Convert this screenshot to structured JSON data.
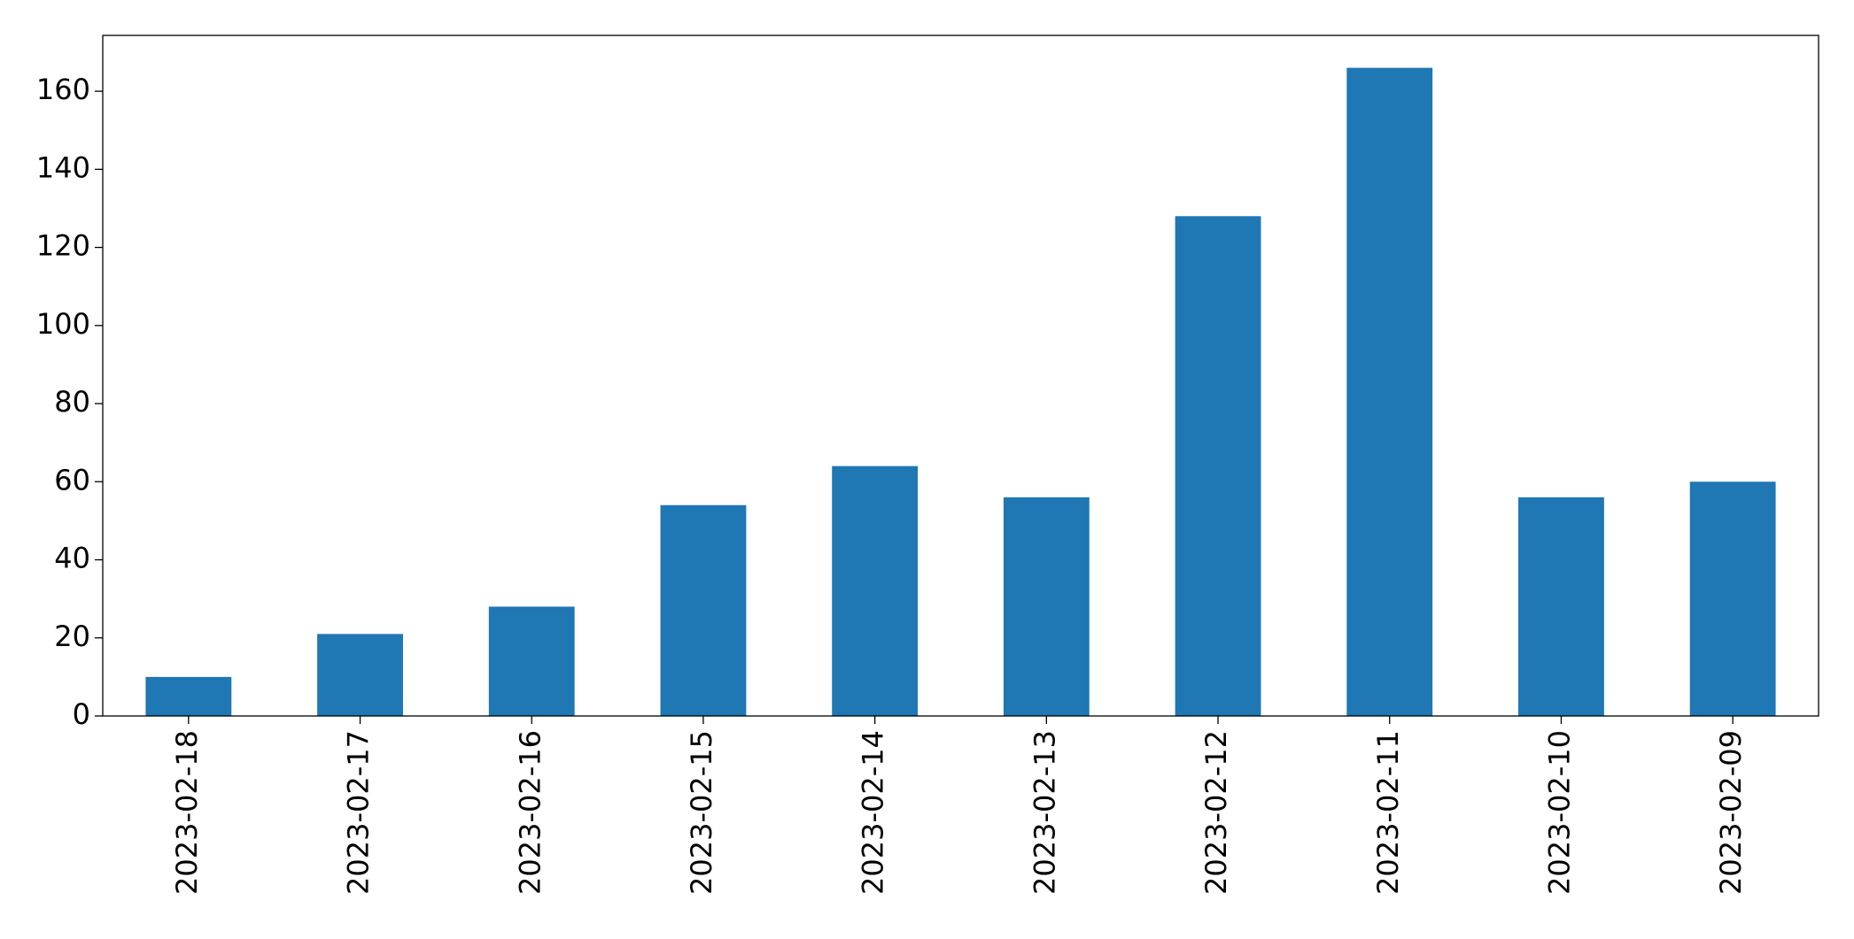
{
  "chart_data": {
    "type": "bar",
    "categories": [
      "2023-02-18",
      "2023-02-17",
      "2023-02-16",
      "2023-02-15",
      "2023-02-14",
      "2023-02-13",
      "2023-02-12",
      "2023-02-11",
      "2023-02-10",
      "2023-02-09"
    ],
    "values": [
      10,
      21,
      28,
      54,
      64,
      56,
      128,
      166,
      56,
      60
    ],
    "color": "#1f77b4",
    "ylim": [
      0,
      174.3
    ],
    "yticks": [
      0,
      20,
      40,
      60,
      80,
      100,
      120,
      140,
      160
    ],
    "grid": false
  }
}
